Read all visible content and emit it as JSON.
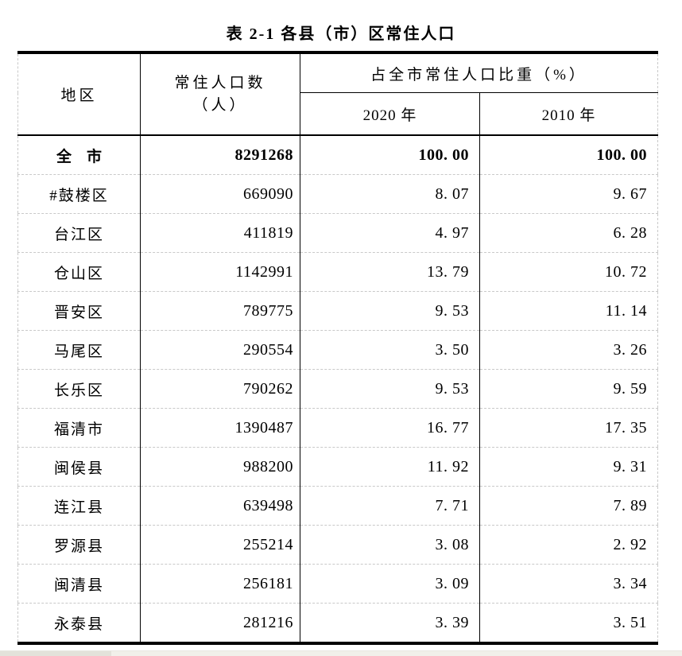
{
  "page": {
    "title": "表 2-1 各县（市）区常住人口"
  },
  "colors": {
    "text": "#000000",
    "strong_border": "#000000",
    "row_separator": "#c9c9c9",
    "scrollbar_track": "#f1f0ea",
    "scrollbar_thumb": "#e3e2da"
  },
  "table": {
    "headers": {
      "region": "地区",
      "population_line1": "常住人口数",
      "population_line2": "（人）",
      "share_group": "占全市常住人口比重（%）",
      "year_2020": "2020 年",
      "year_2010": "2010 年"
    },
    "rows": [
      {
        "region": "全　市",
        "population": "8291268",
        "share_2020": "100. 00",
        "share_2010": "100. 00"
      },
      {
        "region": "#鼓楼区",
        "population": "669090",
        "share_2020": "8. 07",
        "share_2010": "9. 67"
      },
      {
        "region": "台江区",
        "population": "411819",
        "share_2020": "4. 97",
        "share_2010": "6. 28"
      },
      {
        "region": "仓山区",
        "population": "1142991",
        "share_2020": "13. 79",
        "share_2010": "10. 72"
      },
      {
        "region": "晋安区",
        "population": "789775",
        "share_2020": "9. 53",
        "share_2010": "11. 14"
      },
      {
        "region": "马尾区",
        "population": "290554",
        "share_2020": "3. 50",
        "share_2010": "3. 26"
      },
      {
        "region": "长乐区",
        "population": "790262",
        "share_2020": "9. 53",
        "share_2010": "9. 59"
      },
      {
        "region": "福清市",
        "population": "1390487",
        "share_2020": "16. 77",
        "share_2010": "17. 35"
      },
      {
        "region": "闽侯县",
        "population": "988200",
        "share_2020": "11. 92",
        "share_2010": "9. 31"
      },
      {
        "region": "连江县",
        "population": "639498",
        "share_2020": "7. 71",
        "share_2010": "7. 89"
      },
      {
        "region": "罗源县",
        "population": "255214",
        "share_2020": "3. 08",
        "share_2010": "2. 92"
      },
      {
        "region": "闽清县",
        "population": "256181",
        "share_2020": "3. 09",
        "share_2010": "3. 34"
      },
      {
        "region": "永泰县",
        "population": "281216",
        "share_2020": "3. 39",
        "share_2010": "3. 51"
      }
    ]
  }
}
